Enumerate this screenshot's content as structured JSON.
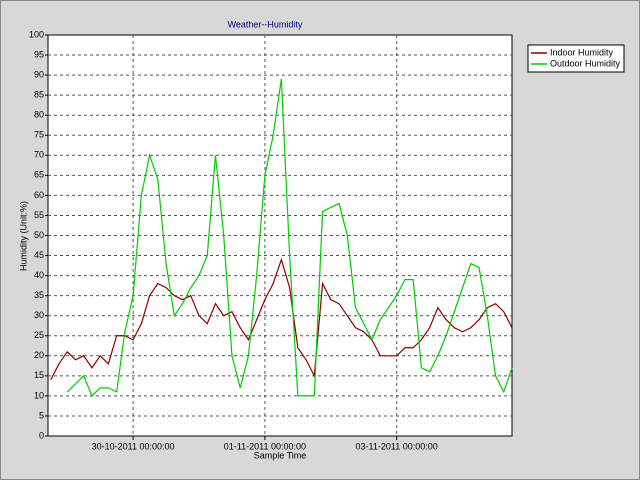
{
  "chart_data": {
    "type": "line",
    "title": "Weather--Humidity",
    "xlabel": "Sample Time",
    "ylabel": "Humidity (Unit:%)",
    "x": [
      "2011-10-28T18:00:00",
      "2011-10-28T21:00:00",
      "2011-10-29T00:00:00",
      "2011-10-29T03:00:00",
      "2011-10-29T06:00:00",
      "2011-10-29T09:00:00",
      "2011-10-29T12:00:00",
      "2011-10-29T15:00:00",
      "2011-10-29T18:00:00",
      "2011-10-29T21:00:00",
      "2011-10-30T00:00:00",
      "2011-10-30T03:00:00",
      "2011-10-30T06:00:00",
      "2011-10-30T09:00:00",
      "2011-10-30T12:00:00",
      "2011-10-30T15:00:00",
      "2011-10-30T18:00:00",
      "2011-10-30T21:00:00",
      "2011-10-31T00:00:00",
      "2011-10-31T03:00:00",
      "2011-10-31T06:00:00",
      "2011-10-31T09:00:00",
      "2011-10-31T12:00:00",
      "2011-10-31T15:00:00",
      "2011-10-31T18:00:00",
      "2011-10-31T21:00:00",
      "2011-11-01T00:00:00",
      "2011-11-01T03:00:00",
      "2011-11-01T06:00:00",
      "2011-11-01T09:00:00",
      "2011-11-01T12:00:00",
      "2011-11-01T15:00:00",
      "2011-11-01T18:00:00",
      "2011-11-01T21:00:00",
      "2011-11-02T00:00:00",
      "2011-11-02T03:00:00",
      "2011-11-02T06:00:00",
      "2011-11-02T09:00:00",
      "2011-11-02T12:00:00",
      "2011-11-02T15:00:00",
      "2011-11-02T18:00:00",
      "2011-11-02T21:00:00",
      "2011-11-03T00:00:00",
      "2011-11-03T03:00:00",
      "2011-11-03T06:00:00",
      "2011-11-03T09:00:00",
      "2011-11-03T12:00:00",
      "2011-11-03T15:00:00",
      "2011-11-03T18:00:00",
      "2011-11-03T21:00:00",
      "2011-11-04T00:00:00",
      "2011-11-04T03:00:00",
      "2011-11-04T06:00:00",
      "2011-11-04T09:00:00",
      "2011-11-04T12:00:00",
      "2011-11-04T15:00:00",
      "2011-11-04T18:00:00"
    ],
    "series": [
      {
        "name": "Indoor Humidity",
        "color": "#8b0000",
        "values": [
          14,
          18,
          21,
          19,
          20,
          17,
          20,
          18,
          25,
          25,
          24,
          28,
          35,
          38,
          37,
          35,
          34,
          35,
          30,
          28,
          33,
          30,
          31,
          27,
          24,
          29,
          34,
          38,
          44,
          37,
          22,
          19,
          15,
          38,
          34,
          33,
          30,
          27,
          26,
          24,
          20,
          20,
          20,
          22,
          22,
          24,
          27,
          32,
          29,
          27,
          26,
          27,
          29,
          32,
          33,
          31,
          27
        ]
      },
      {
        "name": "Outdoor Humidity",
        "color": "#00cc00",
        "values": [
          null,
          null,
          11,
          13,
          15,
          10,
          12,
          12,
          11,
          26,
          35,
          60,
          70,
          64,
          43,
          30,
          33,
          37,
          40,
          45,
          70,
          50,
          20,
          12,
          20,
          40,
          65,
          75,
          89,
          45,
          10,
          10,
          10,
          56,
          57,
          58,
          50,
          32,
          28,
          24,
          29,
          32,
          35,
          39,
          39,
          17,
          16,
          20,
          25,
          31,
          37,
          43,
          42,
          30,
          15,
          11,
          17
        ]
      }
    ],
    "xlim": [
      "2011-10-28T17:00:00",
      "2011-11-04T18:00:00"
    ],
    "xticks": [
      {
        "value": "2011-10-30T00:00:00",
        "label": "30-10-2011 00:00:00"
      },
      {
        "value": "2011-11-01T00:00:00",
        "label": "01-11-2011 00:00:00"
      },
      {
        "value": "2011-11-03T00:00:00",
        "label": "03-11-2011 00:00:00"
      }
    ],
    "ylim": [
      0,
      100
    ],
    "yticks": [
      0,
      5,
      10,
      15,
      20,
      25,
      30,
      35,
      40,
      45,
      50,
      55,
      60,
      65,
      70,
      75,
      80,
      85,
      90,
      95,
      100
    ],
    "grid": true,
    "legend": "right"
  }
}
